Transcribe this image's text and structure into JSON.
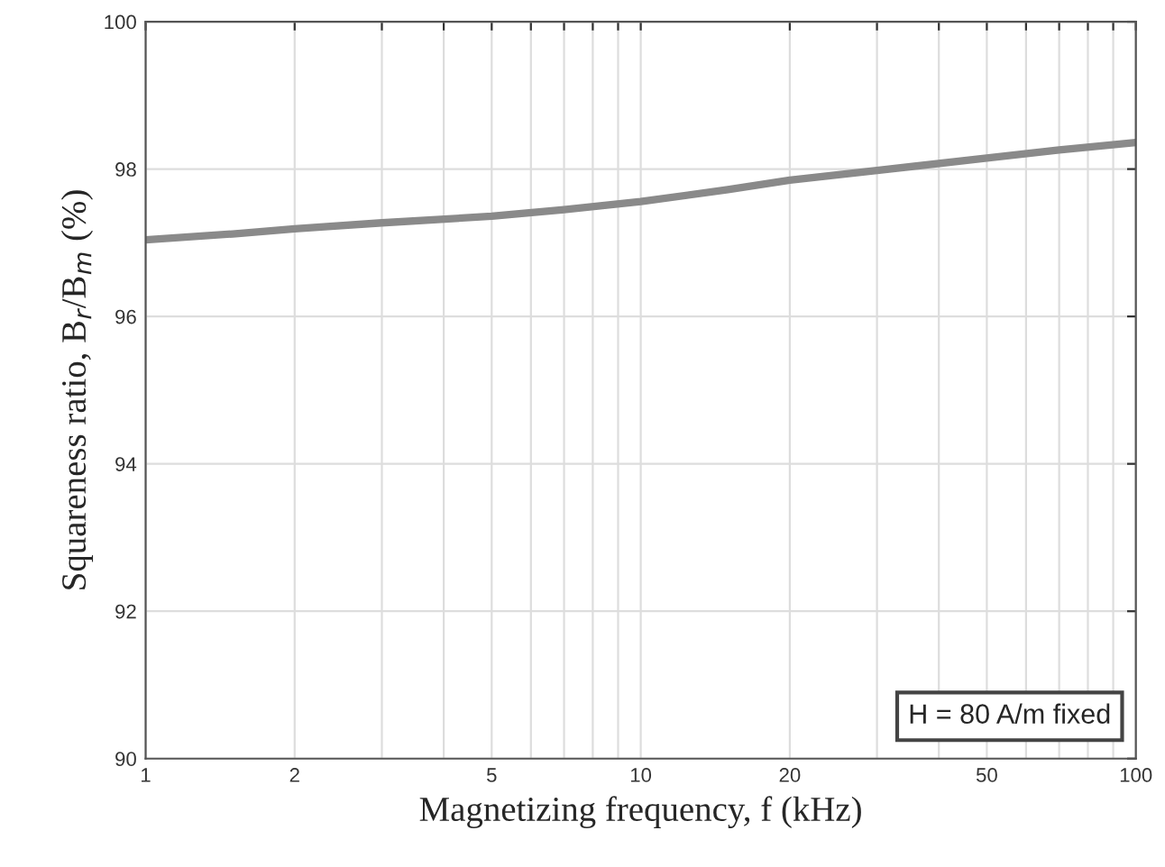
{
  "chart_data": {
    "type": "line",
    "xlabel": "Magnetizing frequency, f (kHz)",
    "ylabel": "Squareness ratio, B$_{r}$/B$_{m}$ (%)",
    "x": [
      1,
      1.5,
      2,
      3,
      5,
      7,
      10,
      15,
      20,
      30,
      50,
      70,
      100
    ],
    "series": [
      {
        "color": "#8a8a8a",
        "values": [
          97.04,
          97.12,
          97.19,
          97.27,
          97.36,
          97.45,
          97.56,
          97.72,
          97.85,
          97.98,
          98.15,
          98.26,
          98.36
        ]
      }
    ],
    "log": "x",
    "xlim": [
      1,
      100
    ],
    "ylim": [
      90,
      100
    ],
    "xticks": [
      1,
      2,
      5,
      10,
      20,
      50,
      100,
      {
        "value": 3,
        "label": null
      },
      {
        "value": 4,
        "label": null
      },
      {
        "value": 6,
        "label": null
      },
      {
        "value": 7,
        "label": null
      },
      {
        "value": 8,
        "label": null
      },
      {
        "value": 9,
        "label": null
      },
      {
        "value": 30,
        "label": null
      },
      {
        "value": 40,
        "label": null
      },
      {
        "value": 60,
        "label": null
      },
      {
        "value": 70,
        "label": null
      },
      {
        "value": 80,
        "label": null
      },
      {
        "value": 90,
        "label": null
      }
    ],
    "yticks": [
      90,
      92,
      94,
      96,
      98,
      100
    ],
    "grid": true,
    "marker": "none",
    "line_style": "solid",
    "annotations": [
      "H = 80 A/m fixed"
    ]
  }
}
